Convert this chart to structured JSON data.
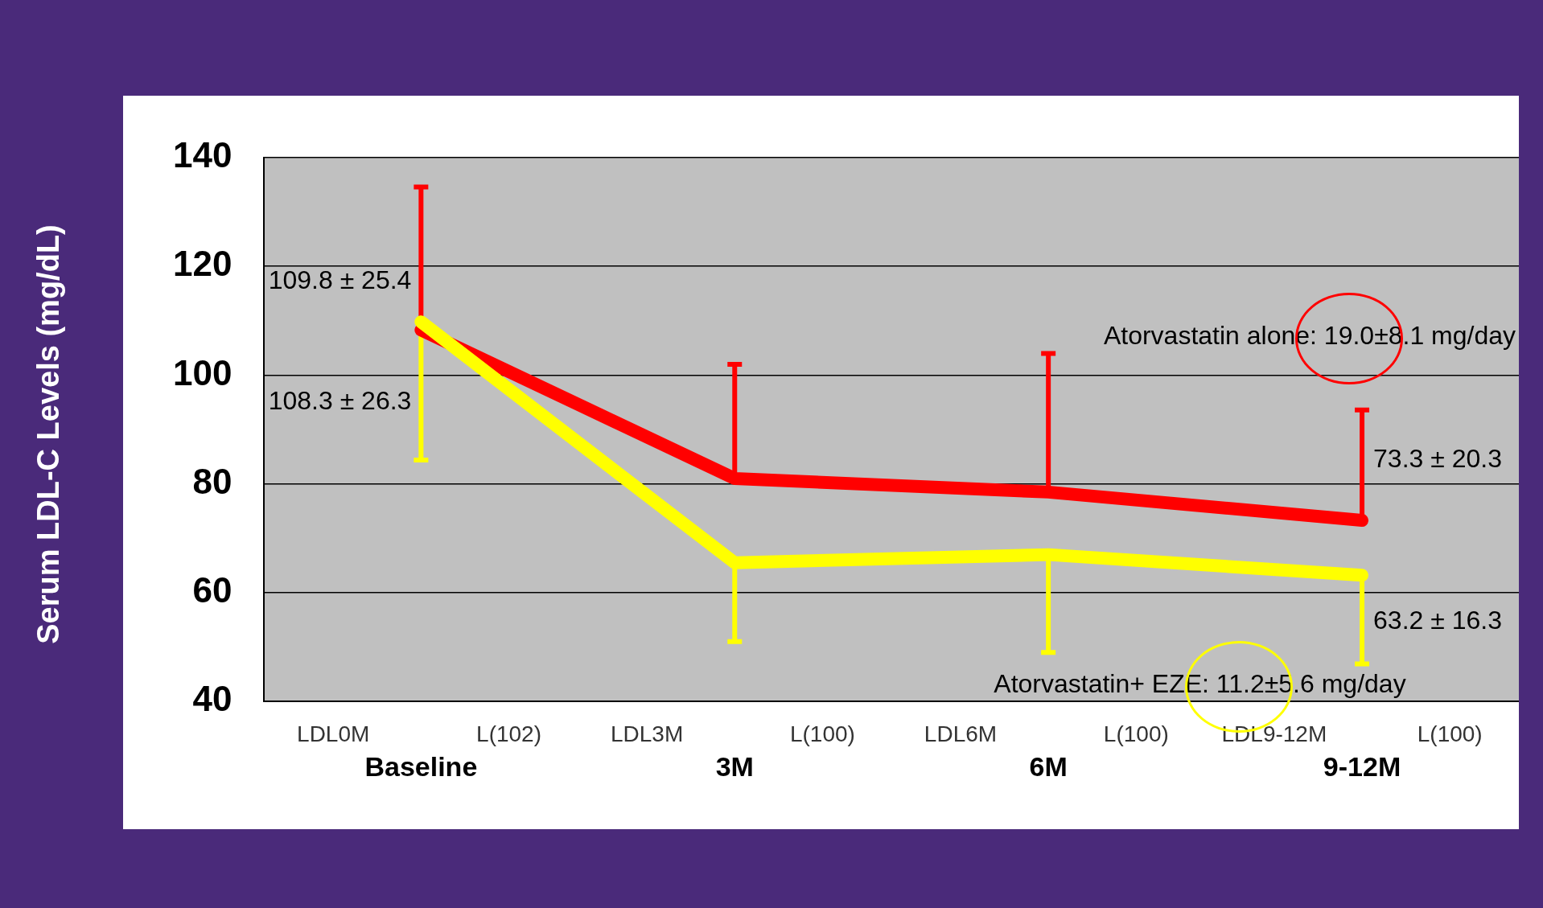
{
  "chart_data": {
    "type": "line",
    "ylabel": "Serum LDL-C Levels (mg/dL)",
    "categories": [
      "Baseline",
      "3M",
      "6M",
      "9-12M"
    ],
    "series": [
      {
        "color": "#ff0000",
        "values": [
          108.3,
          81,
          78.5,
          73.3
        ],
        "errors": [
          [
            108.3,
            134.6
          ],
          [
            81,
            102
          ],
          [
            78.5,
            104
          ],
          [
            73.3,
            93.6
          ]
        ],
        "value_labels": [
          "108.3 ± 26.3",
          null,
          null,
          "73.3 ± 20.3"
        ]
      },
      {
        "color": "#ffff00",
        "values": [
          109.8,
          65.5,
          67,
          63.2
        ],
        "errors": [
          [
            84.4,
            109.8
          ],
          [
            51,
            65.5
          ],
          [
            49,
            67
          ],
          [
            46.9,
            63.2
          ]
        ],
        "value_labels": [
          "109.8 ± 25.4",
          null,
          null,
          "63.2 ± 16.3"
        ]
      }
    ],
    "ylim": [
      40,
      140
    ],
    "yticks": [
      40,
      60,
      80,
      100,
      120,
      140
    ],
    "grid": "y",
    "marker": "none",
    "line_style": "solid",
    "annotations": [
      "Atorvastatin alone: 19.0±8.1 mg/day",
      "Atorvastatin+ EZE: 11.2±5.6 mg/day",
      "LDL0M",
      "L(102)",
      "LDL3M",
      "L(100)",
      "LDL6M",
      "L(100)",
      "LDL9-12M",
      "L(100)"
    ]
  }
}
